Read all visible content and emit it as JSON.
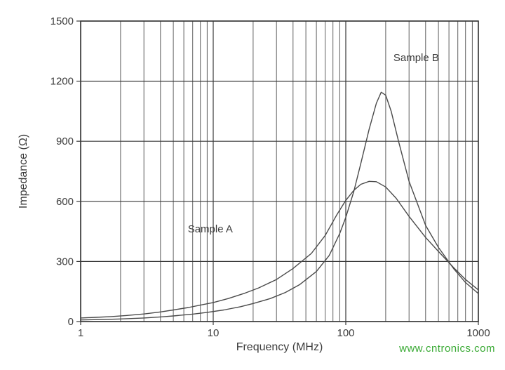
{
  "chart_data": {
    "type": "line",
    "title": "",
    "xlabel": "Frequency (MHz)",
    "ylabel": "Impedance (Ω)",
    "x_scale": "log",
    "xlim": [
      1,
      1000
    ],
    "ylim": [
      0,
      1500
    ],
    "x_ticks": [
      1,
      10,
      100,
      1000
    ],
    "y_ticks": [
      0,
      300,
      600,
      900,
      1200,
      1500
    ],
    "grid": true,
    "legend_position": "inline-annotations",
    "series": [
      {
        "name": "Sample A",
        "x": [
          1,
          1.3,
          1.7,
          2.2,
          3,
          4,
          5,
          6.5,
          8,
          10,
          13,
          17,
          22,
          30,
          40,
          55,
          70,
          85,
          100,
          115,
          130,
          150,
          170,
          200,
          240,
          300,
          400,
          500,
          650,
          800,
          1000
        ],
        "y": [
          18,
          21,
          25,
          30,
          38,
          48,
          58,
          70,
          82,
          95,
          115,
          140,
          168,
          210,
          265,
          340,
          430,
          530,
          605,
          655,
          685,
          700,
          698,
          672,
          615,
          525,
          420,
          350,
          270,
          210,
          158
        ]
      },
      {
        "name": "Sample B",
        "x": [
          1,
          1.5,
          2,
          3,
          4,
          5,
          7,
          9,
          12,
          16,
          20,
          27,
          35,
          45,
          60,
          75,
          90,
          100,
          115,
          130,
          150,
          170,
          185,
          200,
          220,
          250,
          300,
          400,
          500,
          650,
          800,
          1000
        ],
        "y": [
          8,
          10,
          13,
          18,
          23,
          28,
          37,
          46,
          58,
          74,
          90,
          115,
          145,
          185,
          250,
          330,
          440,
          520,
          650,
          790,
          960,
          1090,
          1145,
          1130,
          1050,
          900,
          700,
          480,
          370,
          265,
          195,
          140
        ]
      }
    ],
    "annotations": [
      {
        "text": "Sample A",
        "x": 9.5,
        "y": 445
      },
      {
        "text": "Sample B",
        "x": 340,
        "y": 1300
      }
    ]
  },
  "styles": {
    "curve_color": "#4a4a4a",
    "grid_color": "#5f5f5f",
    "axis_color": "#383838",
    "text_color": "#3b3b3b",
    "background": "#ffffff"
  },
  "watermark": {
    "text": "www.cntronics.com",
    "color": "#3aaa35"
  }
}
